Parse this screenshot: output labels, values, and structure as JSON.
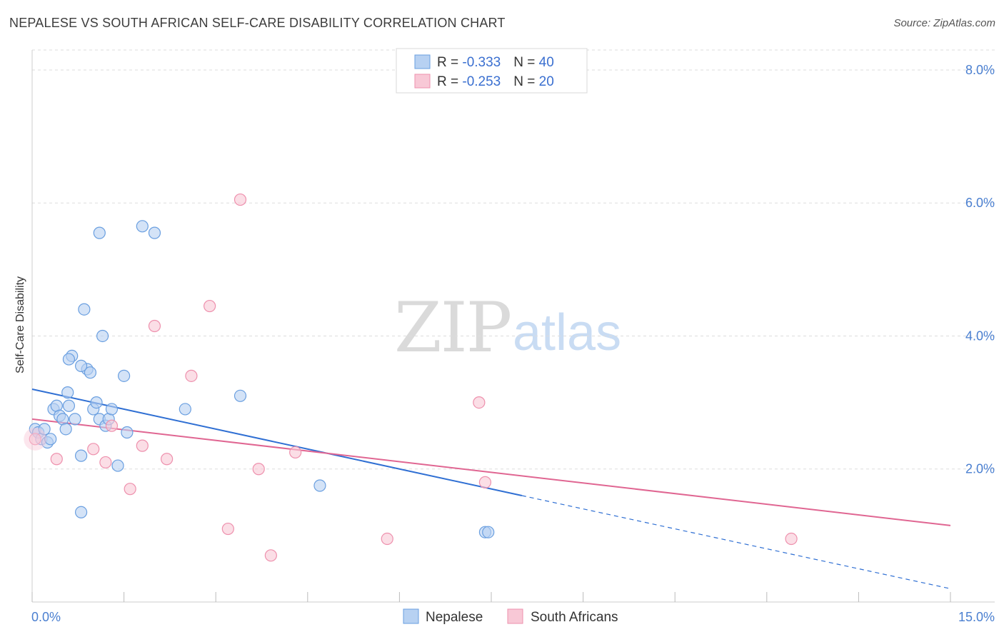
{
  "title": "NEPALESE VS SOUTH AFRICAN SELF-CARE DISABILITY CORRELATION CHART",
  "source": "Source: ZipAtlas.com",
  "watermark": {
    "zip": "ZIP",
    "atlas": "atlas"
  },
  "legend_stats": [
    {
      "r_label": "R = ",
      "r_value": "-0.333",
      "n_label": "N = ",
      "n_value": "40"
    },
    {
      "r_label": "R = ",
      "r_value": "-0.253",
      "n_label": "N = ",
      "n_value": "20"
    }
  ],
  "chart_data": {
    "type": "scatter",
    "title": "NEPALESE VS SOUTH AFRICAN SELF-CARE DISABILITY CORRELATION CHART",
    "xlabel": "",
    "ylabel": "Self-Care Disability",
    "xlim": [
      0,
      15
    ],
    "ylim": [
      0,
      8.3
    ],
    "x_tick_labels": [
      "0.0%",
      "15.0%"
    ],
    "y_ticks": [
      2,
      4,
      6,
      8
    ],
    "y_tick_labels": [
      "2.0%",
      "4.0%",
      "6.0%",
      "8.0%"
    ],
    "grid": true,
    "legend_position": "top-center",
    "series": [
      {
        "name": "Nepalese",
        "color": "#6a9fe0",
        "fill": "#b7d1f2",
        "line_color": "#2f6fd3",
        "r": -0.333,
        "n": 40,
        "trend": {
          "x0": 0,
          "y0": 3.2,
          "x1": 8.0,
          "y1": 1.6,
          "dashed_to_x": 15.0,
          "dashed_to_y": 0.2
        },
        "points": [
          [
            0.05,
            2.6
          ],
          [
            0.1,
            2.55
          ],
          [
            0.15,
            2.45
          ],
          [
            0.2,
            2.6
          ],
          [
            0.25,
            2.4
          ],
          [
            0.3,
            2.45
          ],
          [
            0.35,
            2.9
          ],
          [
            0.4,
            2.95
          ],
          [
            0.45,
            2.8
          ],
          [
            0.5,
            2.75
          ],
          [
            0.55,
            2.6
          ],
          [
            0.58,
            3.15
          ],
          [
            0.6,
            2.95
          ],
          [
            0.65,
            3.7
          ],
          [
            0.7,
            2.75
          ],
          [
            0.8,
            2.2
          ],
          [
            0.9,
            3.5
          ],
          [
            0.95,
            3.45
          ],
          [
            1.0,
            2.9
          ],
          [
            1.05,
            3.0
          ],
          [
            1.1,
            2.75
          ],
          [
            1.2,
            2.65
          ],
          [
            1.25,
            2.75
          ],
          [
            1.3,
            2.9
          ],
          [
            1.4,
            2.05
          ],
          [
            1.5,
            3.4
          ],
          [
            1.55,
            2.55
          ],
          [
            0.85,
            4.4
          ],
          [
            1.15,
            4.0
          ],
          [
            0.8,
            3.55
          ],
          [
            1.1,
            5.55
          ],
          [
            1.8,
            5.65
          ],
          [
            2.0,
            5.55
          ],
          [
            2.5,
            2.9
          ],
          [
            3.4,
            3.1
          ],
          [
            4.7,
            1.75
          ],
          [
            0.8,
            1.35
          ],
          [
            0.6,
            3.65
          ],
          [
            7.4,
            1.05
          ],
          [
            7.45,
            1.05
          ]
        ]
      },
      {
        "name": "South Africans",
        "color": "#ee90ad",
        "fill": "#f8c8d6",
        "line_color": "#e06692",
        "r": -0.253,
        "n": 20,
        "trend": {
          "x0": 0,
          "y0": 2.75,
          "x1": 15.0,
          "y1": 1.15
        },
        "points": [
          [
            0.05,
            2.45
          ],
          [
            0.4,
            2.15
          ],
          [
            1.0,
            2.3
          ],
          [
            1.2,
            2.1
          ],
          [
            1.3,
            2.65
          ],
          [
            1.6,
            1.7
          ],
          [
            1.8,
            2.35
          ],
          [
            2.0,
            4.15
          ],
          [
            2.2,
            2.15
          ],
          [
            2.6,
            3.4
          ],
          [
            2.9,
            4.45
          ],
          [
            3.2,
            1.1
          ],
          [
            3.4,
            6.05
          ],
          [
            3.7,
            2.0
          ],
          [
            3.9,
            0.7
          ],
          [
            4.3,
            2.25
          ],
          [
            5.8,
            0.95
          ],
          [
            7.3,
            3.0
          ],
          [
            7.4,
            1.8
          ],
          [
            12.4,
            0.95
          ]
        ]
      }
    ]
  }
}
